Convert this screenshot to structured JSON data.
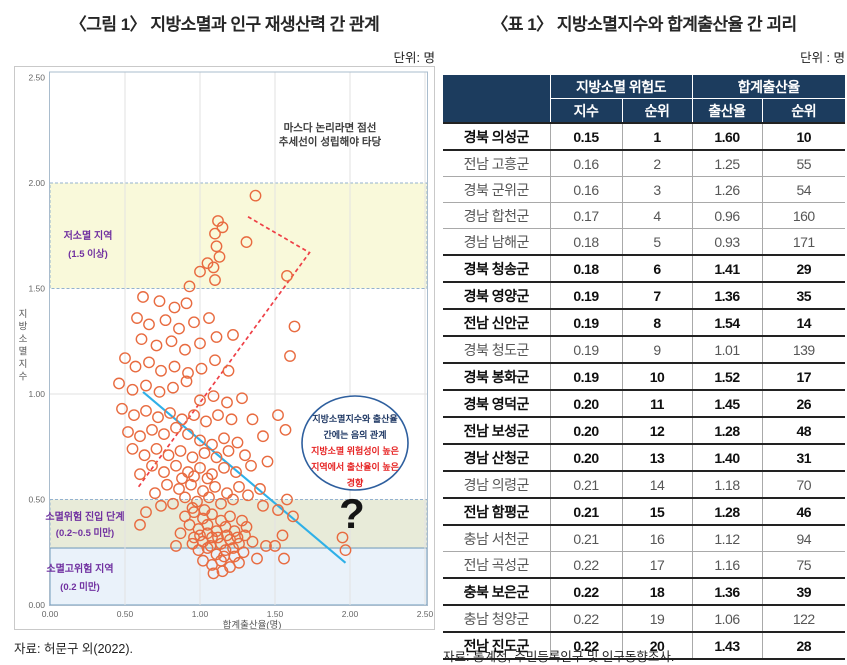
{
  "figure": {
    "title": "〈그림 1〉 지방소멸과 인구 재생산력 간 관계",
    "unit_label": "단위: 명",
    "source": "자료: 허문구 외(2022)."
  },
  "table": {
    "title": "〈표 1〉 지방소멸지수와 합계출산율 간 괴리",
    "unit_label": "단위 : 명",
    "source": "자료: 통계청, 주민등록인구 및 인구동향조사.",
    "header_bg": "#1c3c5e",
    "col_groups": [
      "지방소멸 위험도",
      "합계출산율"
    ],
    "sub_headers": [
      "지수",
      "순위",
      "출산율",
      "순위"
    ],
    "rows": [
      {
        "region": "경북 의성군",
        "index": "0.15",
        "index_rank": "1",
        "fertility": "1.60",
        "fertility_rank": "10",
        "bold": true
      },
      {
        "region": "전남 고흥군",
        "index": "0.16",
        "index_rank": "2",
        "fertility": "1.25",
        "fertility_rank": "55",
        "bold": false
      },
      {
        "region": "경북 군위군",
        "index": "0.16",
        "index_rank": "3",
        "fertility": "1.26",
        "fertility_rank": "54",
        "bold": false
      },
      {
        "region": "경남 합천군",
        "index": "0.17",
        "index_rank": "4",
        "fertility": "0.96",
        "fertility_rank": "160",
        "bold": false
      },
      {
        "region": "경남 남해군",
        "index": "0.18",
        "index_rank": "5",
        "fertility": "0.93",
        "fertility_rank": "171",
        "bold": false
      },
      {
        "region": "경북 청송군",
        "index": "0.18",
        "index_rank": "6",
        "fertility": "1.41",
        "fertility_rank": "29",
        "bold": true
      },
      {
        "region": "경북 영양군",
        "index": "0.19",
        "index_rank": "7",
        "fertility": "1.36",
        "fertility_rank": "35",
        "bold": true
      },
      {
        "region": "전남 신안군",
        "index": "0.19",
        "index_rank": "8",
        "fertility": "1.54",
        "fertility_rank": "14",
        "bold": true
      },
      {
        "region": "경북 청도군",
        "index": "0.19",
        "index_rank": "9",
        "fertility": "1.01",
        "fertility_rank": "139",
        "bold": false
      },
      {
        "region": "경북 봉화군",
        "index": "0.19",
        "index_rank": "10",
        "fertility": "1.52",
        "fertility_rank": "17",
        "bold": true
      },
      {
        "region": "경북 영덕군",
        "index": "0.20",
        "index_rank": "11",
        "fertility": "1.45",
        "fertility_rank": "26",
        "bold": true
      },
      {
        "region": "전남 보성군",
        "index": "0.20",
        "index_rank": "12",
        "fertility": "1.28",
        "fertility_rank": "48",
        "bold": true
      },
      {
        "region": "경남 산청군",
        "index": "0.20",
        "index_rank": "13",
        "fertility": "1.40",
        "fertility_rank": "31",
        "bold": true
      },
      {
        "region": "경남 의령군",
        "index": "0.21",
        "index_rank": "14",
        "fertility": "1.18",
        "fertility_rank": "70",
        "bold": false
      },
      {
        "region": "전남 함평군",
        "index": "0.21",
        "index_rank": "15",
        "fertility": "1.28",
        "fertility_rank": "46",
        "bold": true
      },
      {
        "region": "충남 서천군",
        "index": "0.21",
        "index_rank": "16",
        "fertility": "1.12",
        "fertility_rank": "94",
        "bold": false
      },
      {
        "region": "전남 곡성군",
        "index": "0.22",
        "index_rank": "17",
        "fertility": "1.16",
        "fertility_rank": "75",
        "bold": false
      },
      {
        "region": "충북 보은군",
        "index": "0.22",
        "index_rank": "18",
        "fertility": "1.36",
        "fertility_rank": "39",
        "bold": true
      },
      {
        "region": "충남 청양군",
        "index": "0.22",
        "index_rank": "19",
        "fertility": "1.06",
        "fertility_rank": "122",
        "bold": false
      },
      {
        "region": "전남 진도군",
        "index": "0.22",
        "index_rank": "20",
        "fertility": "1.43",
        "fertility_rank": "28",
        "bold": true
      }
    ]
  },
  "chart_data": {
    "type": "scatter",
    "title": "〈그림 1〉 지방소멸과 인구 재생산력 간 관계",
    "xlabel": "합계출산율(명)",
    "ylabel": "지방소멸지수",
    "xlim": [
      0,
      2.5
    ],
    "ylim": [
      0,
      2.5
    ],
    "xticks": [
      "0.00",
      "0.50",
      "1.00",
      "1.50",
      "2.00",
      "2.50"
    ],
    "yticks": [
      "0.00",
      "0.50",
      "1.00",
      "1.50",
      "2.00",
      "2.50"
    ],
    "grid": true,
    "point_color": "#e86b40",
    "bands": [
      {
        "from": 1.5,
        "to": 2.0,
        "fill": "#f9f9da",
        "stroke": "#94b2cf",
        "dash": true,
        "label_lines": [
          "저소멸 지역",
          "(1.5 이상)"
        ],
        "label_color": "#7030a0"
      },
      {
        "from": 0.27,
        "to": 0.5,
        "fill": "#e8ebd9",
        "stroke": "#94b2cf",
        "dash": true,
        "label_lines": [
          "소멸위험 진입 단계",
          "(0.2~0.5 미만)"
        ],
        "label_color": "#7030a0"
      },
      {
        "from": 0,
        "to": 0.27,
        "fill": "#eaf2fa",
        "stroke": "#6f99bb",
        "dash": false,
        "label_lines": [
          "소멸고위험 지역",
          "(0.2 미만)"
        ],
        "label_color": "#7030a0"
      }
    ],
    "annotations": {
      "top_note_lines": [
        "마스다 논리라면 점선",
        "추세선이 성립해야 타당"
      ],
      "ellipse_navy_lines": [
        "지방소멸지수와 출산율",
        "간에는 음의 관계"
      ],
      "ellipse_red_lines": [
        "지방소멸 위험성이 높은",
        "지역에서 출산율이 높은",
        "경향"
      ],
      "navy_text_color": "#1f3864",
      "red_text_color": "#e62222",
      "ellipse_border_color": "#2e5f9e",
      "question_mark": "?"
    },
    "trend_lines": [
      {
        "name": "masuda-hypothetical-trend",
        "style": "dashed",
        "color": "#ee3f46",
        "points": [
          [
            1.32,
            1.84
          ],
          [
            1.73,
            1.67
          ],
          [
            0.58,
            0.55
          ]
        ]
      },
      {
        "name": "observed-negative-trend",
        "style": "solid",
        "color": "#2fb0e8",
        "points": [
          [
            0.62,
            1.01
          ],
          [
            1.97,
            0.2
          ]
        ]
      }
    ],
    "points": [
      [
        1.37,
        1.94
      ],
      [
        1.12,
        1.82
      ],
      [
        1.15,
        1.79
      ],
      [
        1.1,
        1.76
      ],
      [
        1.31,
        1.72
      ],
      [
        1.11,
        1.7
      ],
      [
        1.13,
        1.65
      ],
      [
        1.05,
        1.62
      ],
      [
        1.09,
        1.6
      ],
      [
        1.0,
        1.58
      ],
      [
        1.1,
        1.54
      ],
      [
        1.58,
        1.56
      ],
      [
        0.93,
        1.51
      ],
      [
        0.62,
        1.46
      ],
      [
        0.73,
        1.44
      ],
      [
        0.83,
        1.41
      ],
      [
        0.91,
        1.43
      ],
      [
        0.58,
        1.36
      ],
      [
        0.66,
        1.33
      ],
      [
        0.77,
        1.35
      ],
      [
        0.86,
        1.31
      ],
      [
        0.96,
        1.34
      ],
      [
        1.06,
        1.36
      ],
      [
        1.63,
        1.32
      ],
      [
        0.61,
        1.26
      ],
      [
        0.71,
        1.23
      ],
      [
        0.81,
        1.25
      ],
      [
        0.9,
        1.21
      ],
      [
        1.0,
        1.24
      ],
      [
        1.11,
        1.27
      ],
      [
        1.22,
        1.28
      ],
      [
        0.5,
        1.17
      ],
      [
        0.57,
        1.13
      ],
      [
        0.66,
        1.15
      ],
      [
        0.74,
        1.11
      ],
      [
        0.83,
        1.13
      ],
      [
        0.92,
        1.1
      ],
      [
        1.01,
        1.12
      ],
      [
        1.1,
        1.16
      ],
      [
        1.19,
        1.11
      ],
      [
        1.6,
        1.18
      ],
      [
        0.46,
        1.05
      ],
      [
        0.55,
        1.02
      ],
      [
        0.64,
        1.04
      ],
      [
        0.73,
        1.01
      ],
      [
        0.82,
        1.03
      ],
      [
        0.91,
        1.06
      ],
      [
        1.0,
        0.97
      ],
      [
        1.09,
        0.99
      ],
      [
        1.18,
        0.96
      ],
      [
        1.28,
        0.98
      ],
      [
        0.48,
        0.93
      ],
      [
        0.56,
        0.9
      ],
      [
        0.64,
        0.92
      ],
      [
        0.72,
        0.89
      ],
      [
        0.8,
        0.91
      ],
      [
        0.88,
        0.88
      ],
      [
        0.96,
        0.9
      ],
      [
        1.04,
        0.87
      ],
      [
        1.12,
        0.9
      ],
      [
        1.21,
        0.88
      ],
      [
        1.35,
        0.88
      ],
      [
        1.52,
        0.9
      ],
      [
        1.57,
        0.83
      ],
      [
        0.52,
        0.82
      ],
      [
        0.6,
        0.8
      ],
      [
        0.68,
        0.83
      ],
      [
        0.76,
        0.81
      ],
      [
        0.84,
        0.84
      ],
      [
        0.92,
        0.81
      ],
      [
        1.42,
        0.8
      ],
      [
        1.0,
        0.78
      ],
      [
        1.08,
        0.76
      ],
      [
        1.16,
        0.79
      ],
      [
        1.25,
        0.77
      ],
      [
        0.55,
        0.74
      ],
      [
        0.63,
        0.71
      ],
      [
        0.71,
        0.74
      ],
      [
        0.79,
        0.71
      ],
      [
        0.87,
        0.73
      ],
      [
        0.95,
        0.7
      ],
      [
        1.03,
        0.72
      ],
      [
        1.11,
        0.7
      ],
      [
        1.19,
        0.73
      ],
      [
        1.3,
        0.71
      ],
      [
        0.68,
        0.66
      ],
      [
        0.76,
        0.63
      ],
      [
        0.84,
        0.66
      ],
      [
        0.92,
        0.63
      ],
      [
        1.0,
        0.65
      ],
      [
        1.08,
        0.62
      ],
      [
        1.16,
        0.65
      ],
      [
        1.24,
        0.63
      ],
      [
        1.34,
        0.66
      ],
      [
        0.6,
        0.62
      ],
      [
        0.88,
        0.6
      ],
      [
        0.96,
        0.61
      ],
      [
        1.45,
        0.68
      ],
      [
        1.05,
        0.6
      ],
      [
        0.78,
        0.57
      ],
      [
        0.86,
        0.55
      ],
      [
        0.94,
        0.57
      ],
      [
        1.02,
        0.54
      ],
      [
        1.1,
        0.56
      ],
      [
        1.18,
        0.53
      ],
      [
        1.26,
        0.56
      ],
      [
        0.7,
        0.53
      ],
      [
        0.9,
        0.51
      ],
      [
        0.98,
        0.49
      ],
      [
        1.06,
        0.51
      ],
      [
        1.14,
        0.48
      ],
      [
        1.22,
        0.5
      ],
      [
        1.32,
        0.52
      ],
      [
        1.4,
        0.55
      ],
      [
        1.58,
        0.5
      ],
      [
        0.82,
        0.48
      ],
      [
        0.74,
        0.47
      ],
      [
        0.95,
        0.46
      ],
      [
        1.42,
        0.47
      ],
      [
        1.52,
        0.45
      ],
      [
        1.03,
        0.45
      ],
      [
        0.9,
        0.42
      ],
      [
        0.96,
        0.44
      ],
      [
        1.02,
        0.41
      ],
      [
        1.08,
        0.43
      ],
      [
        1.14,
        0.4
      ],
      [
        1.2,
        0.42
      ],
      [
        1.28,
        0.4
      ],
      [
        0.93,
        0.38
      ],
      [
        0.99,
        0.36
      ],
      [
        1.05,
        0.38
      ],
      [
        1.11,
        0.35
      ],
      [
        1.17,
        0.37
      ],
      [
        1.23,
        0.35
      ],
      [
        1.31,
        0.37
      ],
      [
        0.96,
        0.32
      ],
      [
        1.02,
        0.3
      ],
      [
        1.08,
        0.32
      ],
      [
        1.14,
        0.29
      ],
      [
        1.2,
        0.31
      ],
      [
        1.26,
        0.29
      ],
      [
        0.99,
        0.26
      ],
      [
        1.05,
        0.27
      ],
      [
        1.11,
        0.24
      ],
      [
        1.17,
        0.26
      ],
      [
        1.23,
        0.23
      ],
      [
        1.29,
        0.25
      ],
      [
        1.02,
        0.21
      ],
      [
        1.08,
        0.19
      ],
      [
        1.14,
        0.21
      ],
      [
        1.2,
        0.18
      ],
      [
        1.26,
        0.2
      ],
      [
        1.09,
        0.15
      ],
      [
        1.15,
        0.16
      ],
      [
        1.35,
        0.3
      ],
      [
        1.38,
        0.22
      ],
      [
        0.87,
        0.34
      ],
      [
        0.84,
        0.28
      ],
      [
        1.44,
        0.28
      ],
      [
        1.05,
        0.34
      ],
      [
        1.12,
        0.32
      ],
      [
        1.18,
        0.33
      ],
      [
        0.95,
        0.29
      ],
      [
        1.0,
        0.33
      ],
      [
        1.22,
        0.27
      ],
      [
        1.3,
        0.33
      ],
      [
        1.07,
        0.28
      ],
      [
        1.16,
        0.23
      ],
      [
        1.25,
        0.32
      ],
      [
        1.95,
        0.32
      ],
      [
        1.97,
        0.26
      ],
      [
        1.55,
        0.33
      ],
      [
        1.62,
        0.42
      ],
      [
        1.5,
        0.28
      ],
      [
        1.56,
        0.22
      ],
      [
        0.64,
        0.44
      ],
      [
        0.6,
        0.38
      ]
    ]
  }
}
